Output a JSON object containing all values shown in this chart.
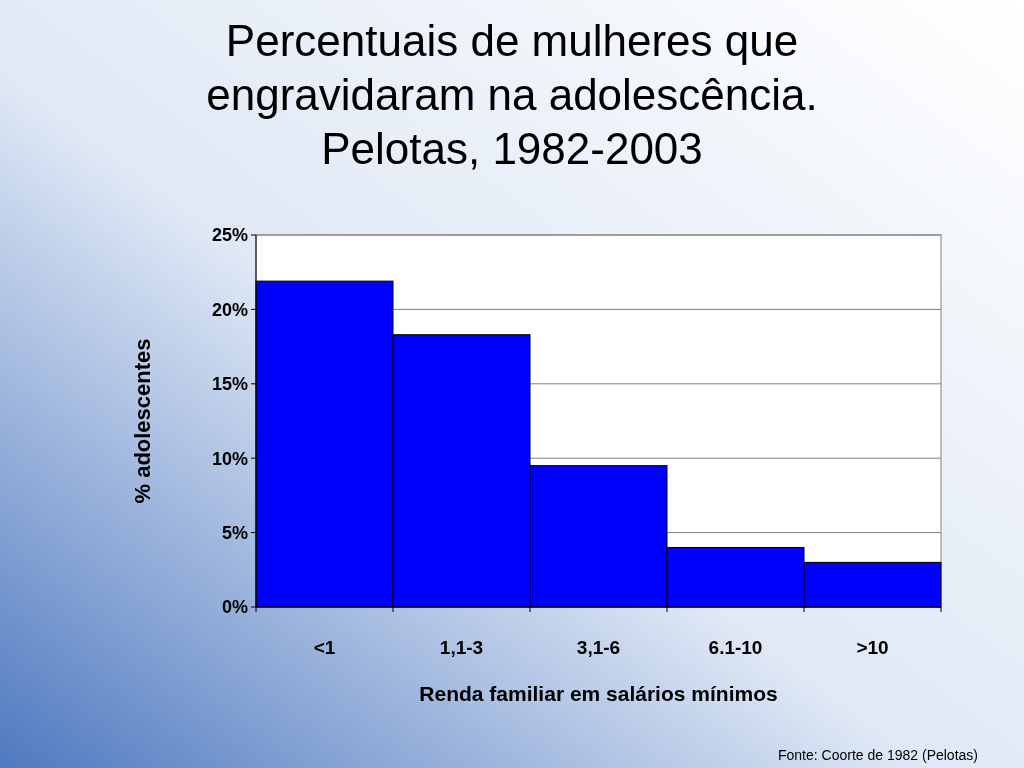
{
  "chart_data": {
    "type": "bar",
    "title": "Percentuais de mulheres que\nengravidaram na adolescência.\nPelotas, 1982-2003",
    "categories": [
      "<1",
      "1,1-3",
      "3,1-6",
      "6.1-10",
      ">10"
    ],
    "values": [
      21.9,
      18.3,
      9.5,
      4.0,
      3.0
    ],
    "color": "#0000ff",
    "xlabel": "Renda familiar em salários mínimos",
    "ylabel": "% adolescentes",
    "ylim": [
      0,
      25
    ],
    "yticks": [
      {
        "value": 0,
        "label": "0%"
      },
      {
        "value": 5,
        "label": "5%"
      },
      {
        "value": 10,
        "label": "10%"
      },
      {
        "value": 15,
        "label": "15%"
      },
      {
        "value": 20,
        "label": "20%"
      },
      {
        "value": 25,
        "label": "25%"
      }
    ],
    "grid": "y",
    "annotations": [
      "Fonte: Coorte de 1982 (Pelotas)"
    ]
  }
}
